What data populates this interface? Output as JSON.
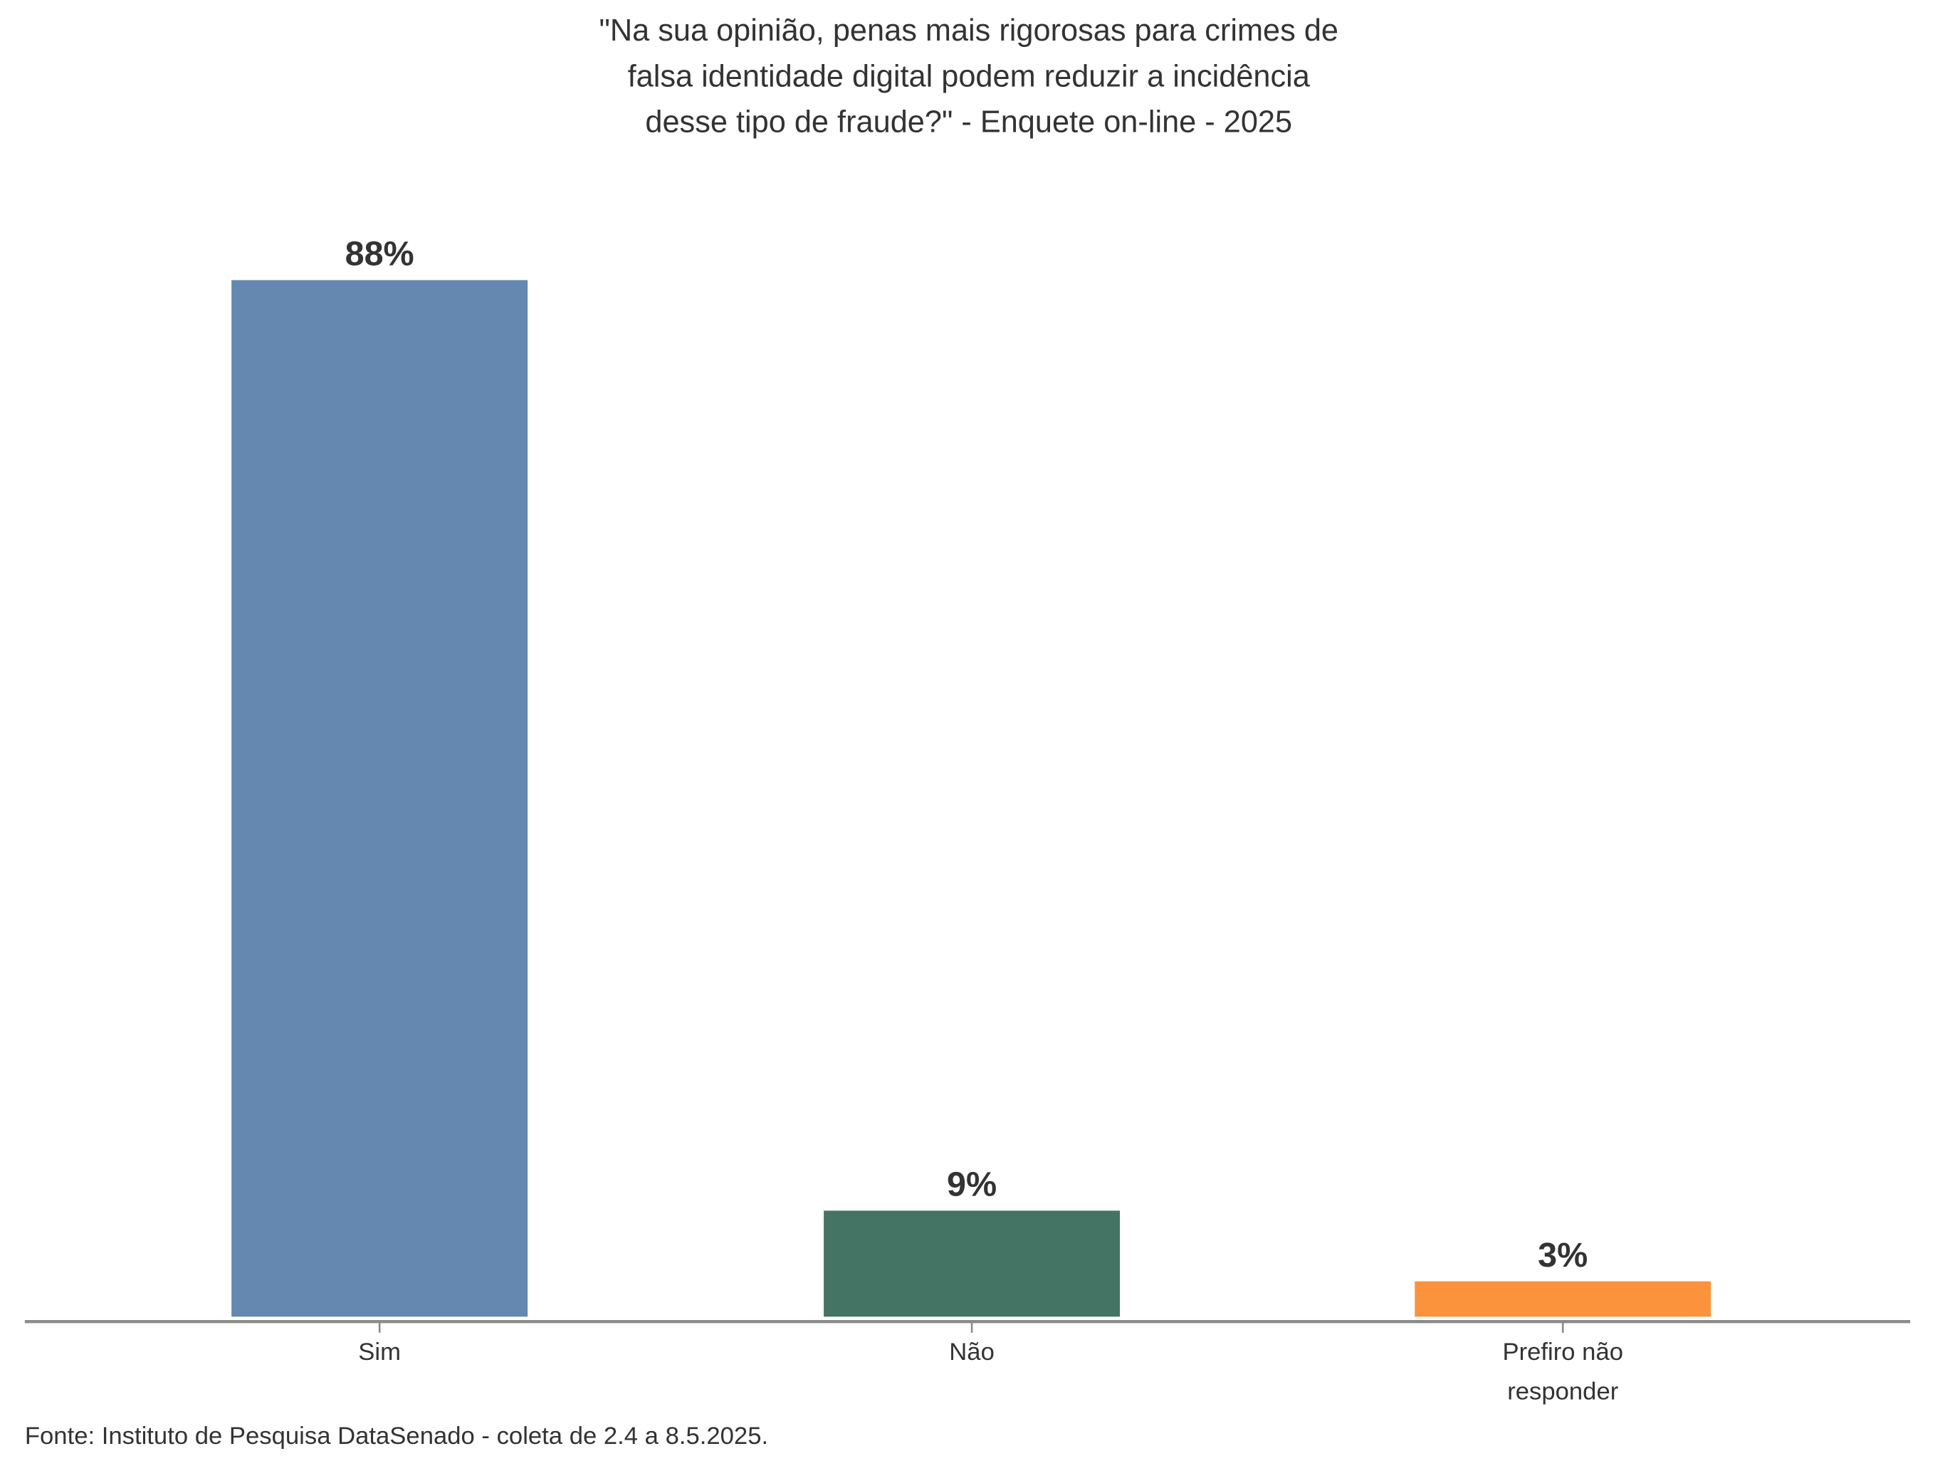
{
  "chart_data": {
    "type": "bar",
    "title": [
      "\"Na sua opinião, penas mais rigorosas para crimes de",
      "falsa identidade digital podem reduzir a incidência",
      "desse tipo de fraude?\" - Enquete on-line - 2025"
    ],
    "categories": [
      [
        "Sim"
      ],
      [
        "Não"
      ],
      [
        "Prefiro não",
        "responder"
      ]
    ],
    "values": [
      88,
      9,
      3
    ],
    "value_labels": [
      "88%",
      "9%",
      "3%"
    ],
    "colors": [
      "#6588b0",
      "#447463",
      "#fb923c"
    ],
    "ylim": [
      0,
      88
    ],
    "grid": false,
    "legend": "none",
    "xlabel": "",
    "ylabel": ""
  },
  "source": "Fonte: Instituto de Pesquisa DataSenado - coleta de 2.4 a 8.5.2025."
}
